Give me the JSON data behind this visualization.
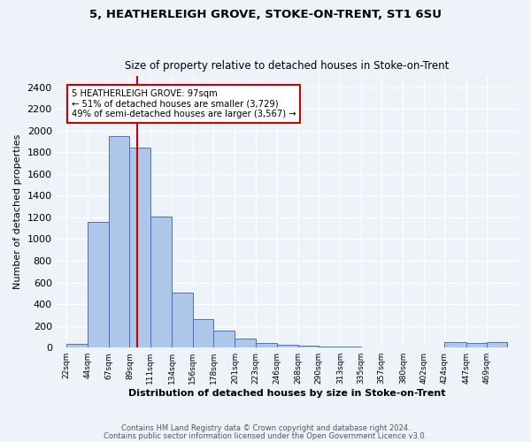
{
  "title": "5, HEATHERLEIGH GROVE, STOKE-ON-TRENT, ST1 6SU",
  "subtitle": "Size of property relative to detached houses in Stoke-on-Trent",
  "xlabel": "Distribution of detached houses by size in Stoke-on-Trent",
  "ylabel": "Number of detached properties",
  "bar_edges": [
    22,
    44,
    67,
    89,
    111,
    134,
    156,
    178,
    201,
    223,
    246,
    268,
    290,
    313,
    335,
    357,
    380,
    402,
    424,
    447,
    469
  ],
  "bar_heights": [
    35,
    1155,
    1950,
    1840,
    1210,
    510,
    265,
    155,
    80,
    45,
    30,
    15,
    10,
    8,
    5,
    5,
    5,
    5,
    50,
    40,
    50
  ],
  "bar_color": "#aec6e8",
  "bar_edgecolor": "#4472c4",
  "property_size": 97,
  "vline_color": "#cc0000",
  "annotation_title": "5 HEATHERLEIGH GROVE: 97sqm",
  "annotation_line1": "← 51% of detached houses are smaller (3,729)",
  "annotation_line2": "49% of semi-detached houses are larger (3,567) →",
  "annotation_box_color": "#ffffff",
  "annotation_box_edgecolor": "#cc0000",
  "ylim": [
    0,
    2500
  ],
  "yticks": [
    0,
    200,
    400,
    600,
    800,
    1000,
    1200,
    1400,
    1600,
    1800,
    2000,
    2200,
    2400
  ],
  "tick_labels": [
    "22sqm",
    "44sqm",
    "67sqm",
    "89sqm",
    "111sqm",
    "134sqm",
    "156sqm",
    "178sqm",
    "201sqm",
    "223sqm",
    "246sqm",
    "268sqm",
    "290sqm",
    "313sqm",
    "335sqm",
    "357sqm",
    "380sqm",
    "402sqm",
    "424sqm",
    "447sqm",
    "469sqm"
  ],
  "footnote1": "Contains HM Land Registry data © Crown copyright and database right 2024.",
  "footnote2": "Contains public sector information licensed under the Open Government Licence v3.0.",
  "bg_color": "#eef2f9",
  "fig_width": 6.0,
  "fig_height": 5.0,
  "fig_dpi": 100
}
